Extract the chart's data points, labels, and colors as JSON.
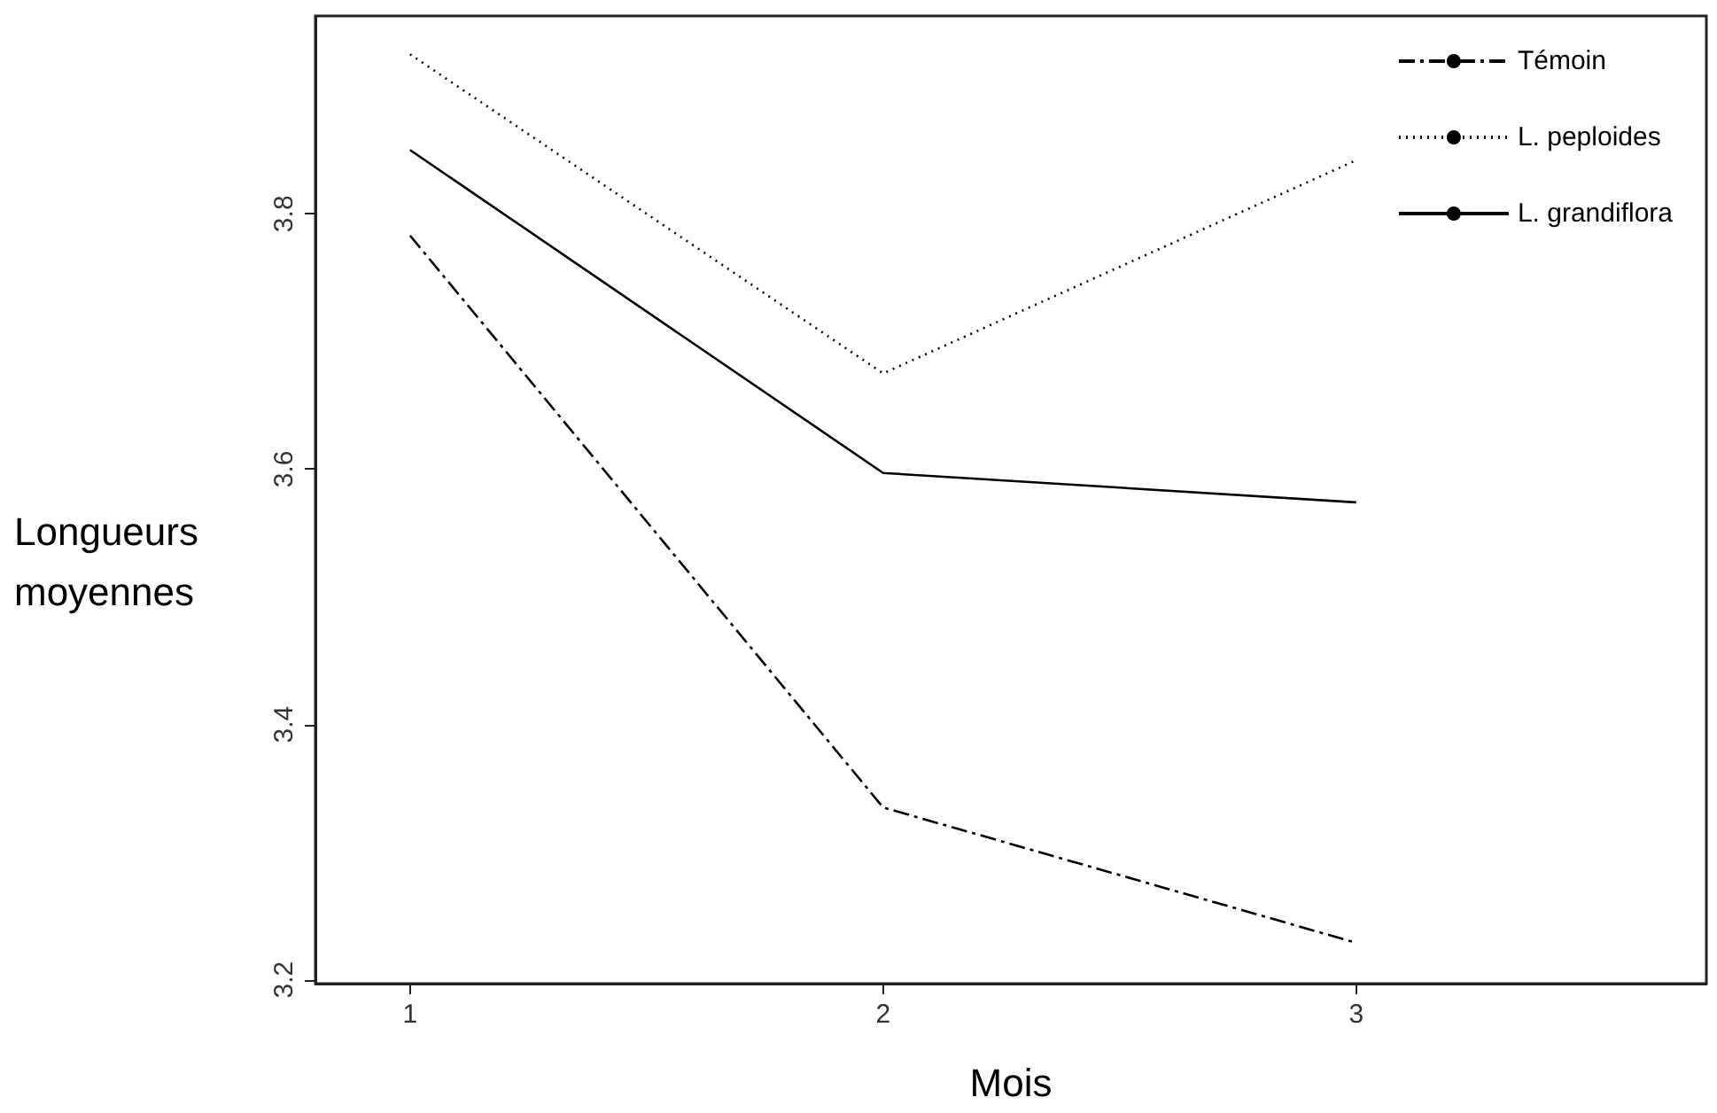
{
  "chart_data": {
    "type": "line",
    "xlabel": "Mois",
    "ylabel": "Longueurs moyennes",
    "x": [
      1,
      2,
      3
    ],
    "xlim": [
      0.8,
      3.74
    ],
    "xticks": [
      1,
      2,
      3
    ],
    "ylim": [
      3.197,
      3.955
    ],
    "yticks": [
      3.2,
      3.4,
      3.6,
      3.8
    ],
    "series": [
      {
        "name": "Témoin",
        "color": "#000000",
        "line_style": "dashed",
        "values": [
          3.783,
          3.335,
          3.229
        ]
      },
      {
        "name": "L. peploides",
        "color": "#000000",
        "line_style": "dotted",
        "values": [
          3.925,
          3.675,
          3.842
        ]
      },
      {
        "name": "L. grandiflora",
        "color": "#000000",
        "line_style": "solid",
        "values": [
          3.85,
          3.597,
          3.574
        ]
      }
    ],
    "legend": "top right",
    "grid": false,
    "marker": "none"
  }
}
